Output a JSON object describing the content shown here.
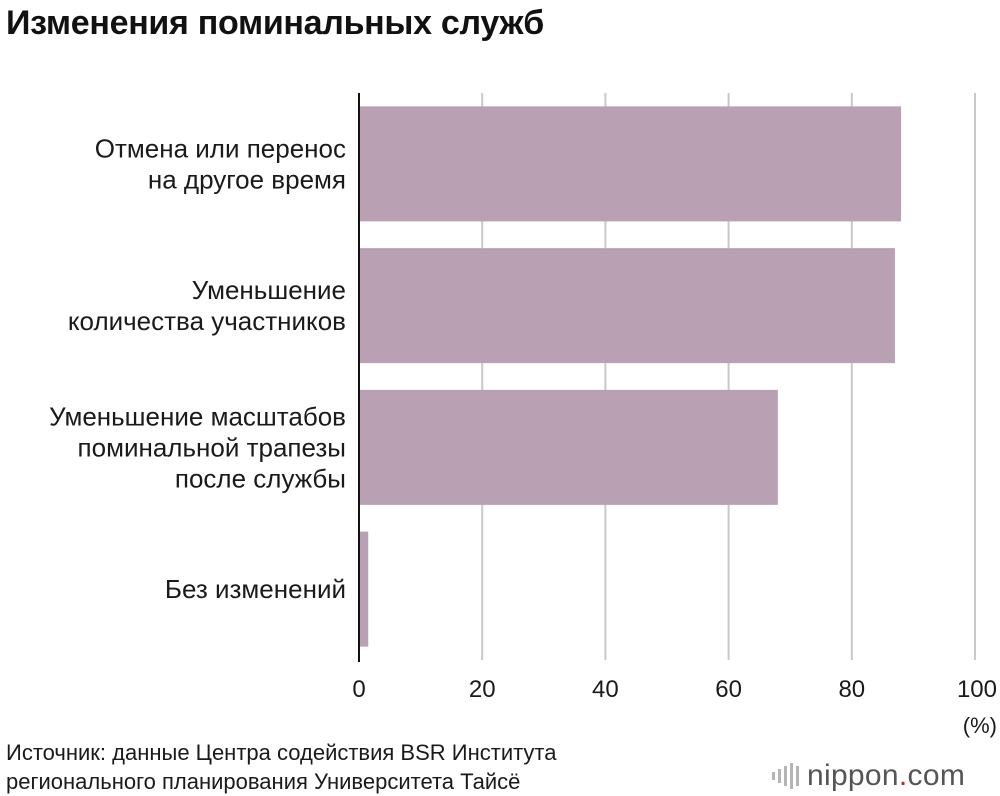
{
  "title": "Изменения поминальных служб",
  "chart_data": {
    "type": "bar",
    "orientation": "horizontal",
    "categories": [
      [
        "Отмена или перенос",
        "на другое время"
      ],
      [
        "Уменьшение",
        "количества участников"
      ],
      [
        "Уменьшение масштабов",
        "поминальной трапезы",
        "после службы"
      ],
      [
        "Без изменений"
      ]
    ],
    "values": [
      88,
      87,
      68,
      1.5
    ],
    "xlim": [
      0,
      100
    ],
    "xticks": [
      0,
      20,
      40,
      60,
      80,
      100
    ],
    "unit": "(%)",
    "grid": true,
    "bar_color": "#b9a0b3"
  },
  "source": {
    "lines": [
      "Источник: данные Центра содействия BSR Института",
      "регионального планирования Университета Тайсё"
    ]
  },
  "brand": {
    "name": "nippon",
    "dot": ".",
    "suffix": "com",
    "accent_color": "#d2201e"
  }
}
